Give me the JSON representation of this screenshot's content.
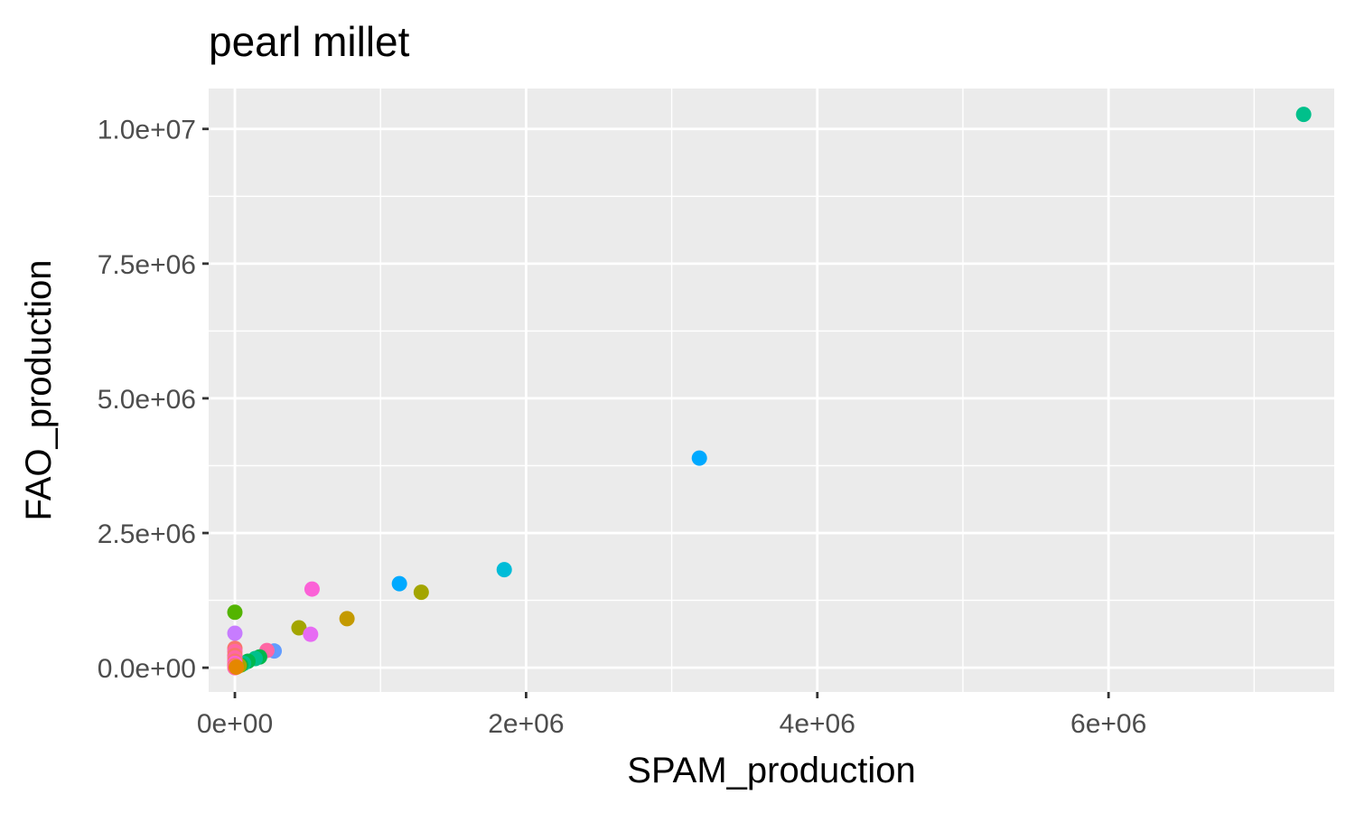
{
  "chart_data": {
    "type": "scatter",
    "title": "pearl millet",
    "xlabel": "SPAM_production",
    "ylabel": "FAO_production",
    "xlim": [
      -180000,
      7550000
    ],
    "ylim": [
      -450000,
      10750000
    ],
    "x_ticks": [
      {
        "value": 0,
        "label": "0e+00"
      },
      {
        "value": 2000000,
        "label": "2e+06"
      },
      {
        "value": 4000000,
        "label": "4e+06"
      },
      {
        "value": 6000000,
        "label": "6e+06"
      }
    ],
    "x_minor": [
      1000000,
      3000000,
      5000000,
      7000000
    ],
    "y_ticks": [
      {
        "value": 0,
        "label": "0.0e+00"
      },
      {
        "value": 2500000,
        "label": "2.5e+06"
      },
      {
        "value": 5000000,
        "label": "5.0e+06"
      },
      {
        "value": 7500000,
        "label": "7.5e+06"
      },
      {
        "value": 10000000,
        "label": "1.0e+07"
      }
    ],
    "y_minor": [
      1250000,
      3750000,
      6250000,
      8750000
    ],
    "grid": true,
    "legend": "none",
    "panel_color": "#ebebeb",
    "grid_color": "#ffffff",
    "points": [
      {
        "x": 7340000,
        "y": 10270000,
        "color": "#00c08b"
      },
      {
        "x": 3190000,
        "y": 3890000,
        "color": "#00a9ff"
      },
      {
        "x": 1850000,
        "y": 1820000,
        "color": "#00bcd8"
      },
      {
        "x": 1130000,
        "y": 1560000,
        "color": "#00a9ff"
      },
      {
        "x": 1280000,
        "y": 1400000,
        "color": "#a3a500"
      },
      {
        "x": 530000,
        "y": 1460000,
        "color": "#fb61d7"
      },
      {
        "x": 770000,
        "y": 910000,
        "color": "#c49a00"
      },
      {
        "x": 440000,
        "y": 740000,
        "color": "#a3a500"
      },
      {
        "x": 520000,
        "y": 620000,
        "color": "#e76bf3"
      },
      {
        "x": 0,
        "y": 1030000,
        "color": "#53b400"
      },
      {
        "x": 0,
        "y": 640000,
        "color": "#c77cff"
      },
      {
        "x": 270000,
        "y": 310000,
        "color": "#619cff"
      },
      {
        "x": 220000,
        "y": 320000,
        "color": "#ff67a4"
      },
      {
        "x": 170000,
        "y": 200000,
        "color": "#00b84d"
      },
      {
        "x": 140000,
        "y": 170000,
        "color": "#00c08b"
      },
      {
        "x": 90000,
        "y": 120000,
        "color": "#00b84d"
      },
      {
        "x": 60000,
        "y": 80000,
        "color": "#00c08b"
      },
      {
        "x": 40000,
        "y": 50000,
        "color": "#00b84d"
      },
      {
        "x": 30000,
        "y": 40000,
        "color": "#a3a500"
      },
      {
        "x": 0,
        "y": 360000,
        "color": "#f8766d"
      },
      {
        "x": 0,
        "y": 300000,
        "color": "#ff67a4"
      },
      {
        "x": 0,
        "y": 230000,
        "color": "#f8766d"
      },
      {
        "x": 0,
        "y": 180000,
        "color": "#ff67a4"
      },
      {
        "x": 0,
        "y": 120000,
        "color": "#f8766d"
      },
      {
        "x": 0,
        "y": 80000,
        "color": "#fb61d7"
      },
      {
        "x": 0,
        "y": 40000,
        "color": "#f8766d"
      },
      {
        "x": 0,
        "y": 0,
        "color": "#ff67a4"
      },
      {
        "x": 10000,
        "y": 10000,
        "color": "#e58700"
      }
    ]
  }
}
